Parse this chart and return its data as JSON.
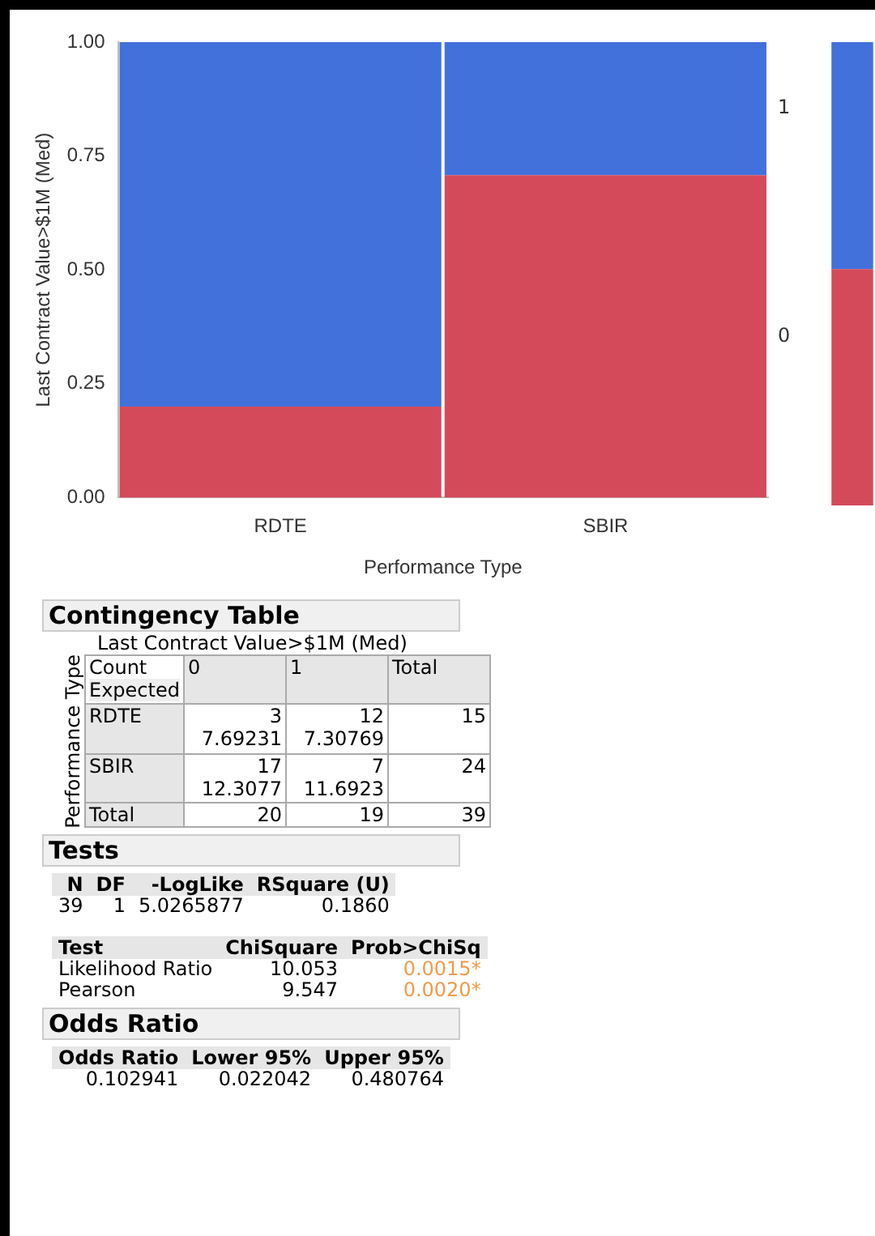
{
  "chart_data": [
    {
      "type": "bar",
      "stacked": true,
      "xlabel": "Performance Type",
      "ylabel": "Last Contract Value>$1M (Med)",
      "categories": [
        "RDTE",
        "SBIR"
      ],
      "ylim": [
        0,
        1
      ],
      "yticks": [
        {
          "value": 0,
          "label": "0.00"
        },
        {
          "value": 0.25,
          "label": "0.25"
        },
        {
          "value": 0.5,
          "label": "0.50"
        },
        {
          "value": 0.75,
          "label": "0.75"
        },
        {
          "value": 1,
          "label": "1.00"
        }
      ],
      "series": [
        {
          "name": "0",
          "color": "#d44a5a",
          "values": [
            0.2,
            0.708
          ]
        },
        {
          "name": "1",
          "color": "#4271dc",
          "values": [
            0.8,
            0.292
          ]
        }
      ]
    },
    {
      "type": "bar",
      "stacked": true,
      "categories": [
        null
      ],
      "ylim": [
        0,
        1
      ],
      "tick_labels": false,
      "series": [
        {
          "color": "#d44a5a",
          "values": [
            0.51
          ]
        },
        {
          "color": "#4271dc",
          "values": [
            0.49
          ]
        }
      ]
    },
    {
      "type": "other",
      "title": "Contingency Table",
      "xlabel": "Last Contract Value>$1M (Med)",
      "ylabel": "Performance Type",
      "annotations": [
        "Count",
        "Expected"
      ],
      "categories": [
        "0",
        "1",
        "Total"
      ],
      "y_categories": [
        "RDTE",
        "SBIR",
        "Total"
      ],
      "cell_labels": [
        [
          "3\n7.69231",
          "12\n7.30769",
          "15"
        ],
        [
          "17\n12.3077",
          "7\n11.6923",
          "24"
        ],
        [
          "20",
          "19",
          "39"
        ]
      ]
    },
    {
      "type": "other",
      "title": "Tests",
      "categories": [
        "N",
        "DF",
        "-LogLike",
        "RSquare (U)"
      ],
      "cell_labels": [
        [
          "39",
          "1",
          "5.0265877",
          "0.1860"
        ]
      ]
    },
    {
      "type": "other",
      "categories": [
        "Test",
        "ChiSquare",
        "Prob>ChiSq"
      ],
      "cell_labels": [
        [
          "Likelihood Ratio",
          "10.053",
          "0.0015*"
        ],
        [
          "Pearson",
          "9.547",
          "0.0020*"
        ]
      ]
    },
    {
      "type": "other",
      "title": "Odds Ratio",
      "categories": [
        "Odds Ratio",
        "Lower 95%",
        "Upper 95%"
      ],
      "cell_labels": [
        [
          "0.102941",
          "0.022042",
          "0.480764"
        ]
      ]
    }
  ]
}
